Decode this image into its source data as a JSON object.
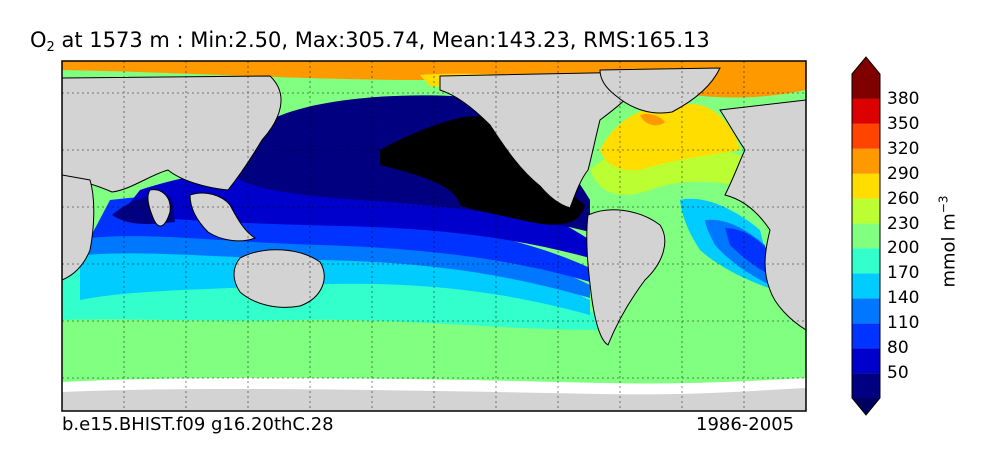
{
  "title": {
    "variable": "O",
    "variable_subscript": "2",
    "rest": " at 1573 m : Min:2.50, Max:305.74, Mean:143.23, RMS:165.13"
  },
  "footer": {
    "case_name": "b.e15.BHIST.f09 g16.20thC.28",
    "period": "1986-2005"
  },
  "colorbar": {
    "unit_base": "mmol m",
    "unit_exp": "−3",
    "levels": [
      {
        "label": "50",
        "color": "#000080"
      },
      {
        "label": "80",
        "color": "#0000cc"
      },
      {
        "label": "110",
        "color": "#0033ff"
      },
      {
        "label": "140",
        "color": "#0077ff"
      },
      {
        "label": "170",
        "color": "#00ccff"
      },
      {
        "label": "200",
        "color": "#33ffcc"
      },
      {
        "label": "230",
        "color": "#80ff80"
      },
      {
        "label": "260",
        "color": "#bbff33"
      },
      {
        "label": "290",
        "color": "#ffdd00"
      },
      {
        "label": "320",
        "color": "#ff9900"
      },
      {
        "label": "350",
        "color": "#ff4400"
      },
      {
        "label": "380",
        "color": "#dd0000"
      }
    ],
    "under_color": "#000060",
    "over_color": "#800000",
    "extend": "both"
  },
  "colors": {
    "land": "#d3d3d3",
    "missing": "#ffffff",
    "min_region": "#000000"
  }
}
